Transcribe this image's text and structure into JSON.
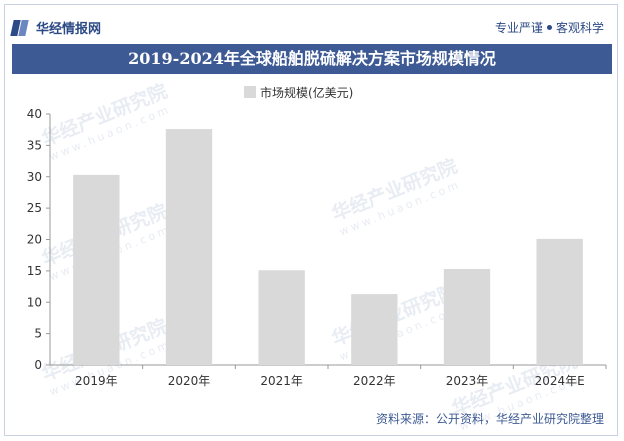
{
  "header": {
    "brand_name": "华经情报网",
    "logo_icon": "huajing-logo-icon",
    "slogan_left": "专业严谨",
    "slogan_right": "客观科学"
  },
  "chart_data": {
    "type": "bar",
    "title": "2019-2024年全球船舶脱硫解决方案市场规模情况",
    "categories": [
      "2019年",
      "2020年",
      "2021年",
      "2022年",
      "2023年",
      "2024年E"
    ],
    "series": [
      {
        "name": "市场规模(亿美元)",
        "values": [
          30.3,
          37.6,
          15.1,
          11.3,
          15.3,
          20.1
        ],
        "color": "#d9d9d9"
      }
    ],
    "ylim": [
      0,
      40
    ],
    "yticks": [
      0,
      5,
      10,
      15,
      20,
      25,
      30,
      35,
      40
    ],
    "grid": false,
    "legend": "top-center"
  },
  "watermark": {
    "cn": "华经产业研究院",
    "en": "www.huaon.com"
  },
  "source": "资料来源：公开资料，华经产业研究院整理"
}
